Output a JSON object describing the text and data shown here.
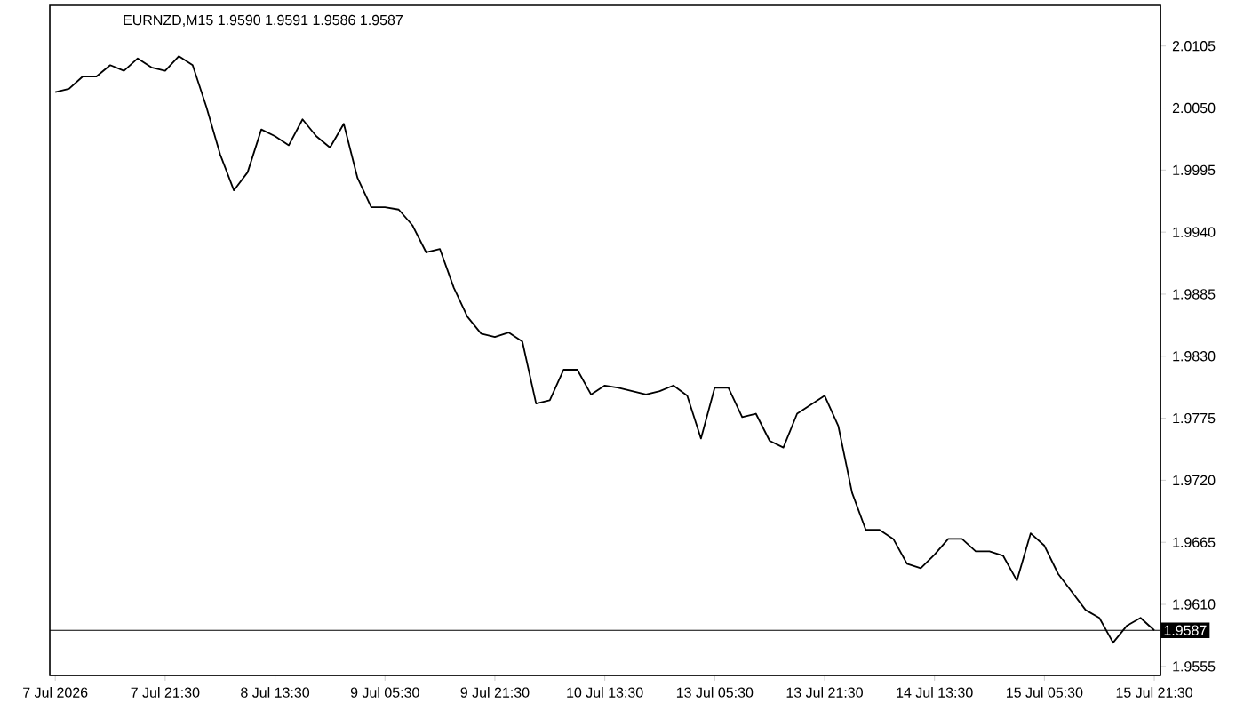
{
  "chart_data": {
    "type": "line",
    "title": "EURNZD,M15  1.9590 1.9591 1.9586 1.9587",
    "categories": [
      "7 Jul 2026",
      null,
      null,
      null,
      null,
      null,
      null,
      null,
      "7 Jul 21:30",
      null,
      null,
      null,
      null,
      null,
      null,
      null,
      "8 Jul 13:30",
      null,
      null,
      null,
      null,
      null,
      null,
      null,
      "9 Jul 05:30",
      null,
      null,
      null,
      null,
      null,
      null,
      null,
      "9 Jul 21:30",
      null,
      null,
      null,
      null,
      null,
      null,
      null,
      "10 Jul 13:30",
      null,
      null,
      null,
      null,
      null,
      null,
      null,
      "13 Jul 05:30",
      null,
      null,
      null,
      null,
      null,
      null,
      null,
      "13 Jul 21:30",
      null,
      null,
      null,
      null,
      null,
      null,
      null,
      "14 Jul 13:30",
      null,
      null,
      null,
      null,
      null,
      null,
      null,
      "15 Jul 05:30",
      null,
      null,
      null,
      null,
      null,
      null,
      null,
      "15 Jul 21:30"
    ],
    "series": [
      {
        "color": "#000000",
        "values": [
          2.0064,
          2.0067,
          2.0078,
          2.0078,
          2.0088,
          2.0083,
          2.0094,
          2.0086,
          2.0083,
          2.0096,
          2.0088,
          2.0051,
          2.0009,
          1.9977,
          1.9993,
          2.0031,
          2.0025,
          2.0017,
          2.004,
          2.0025,
          2.0015,
          2.0036,
          1.9988,
          1.9962,
          1.9962,
          1.996,
          1.9946,
          1.9922,
          1.9925,
          1.9891,
          1.9865,
          1.985,
          1.9847,
          1.9851,
          1.9843,
          1.9788,
          1.9791,
          1.9818,
          1.9818,
          1.9796,
          1.9804,
          1.9802,
          1.9799,
          1.9796,
          1.9799,
          1.9804,
          1.9795,
          1.9757,
          1.9802,
          1.9802,
          1.9776,
          1.9779,
          1.9755,
          1.9749,
          1.9779,
          1.9787,
          1.9795,
          1.9768,
          1.9709,
          1.9676,
          1.9676,
          1.9668,
          1.9646,
          1.9642,
          1.9654,
          1.9668,
          1.9668,
          1.9657,
          1.9657,
          1.9653,
          1.9631,
          1.9673,
          1.9662,
          1.9637,
          1.9621,
          1.9605,
          1.9598,
          1.9576,
          1.9591,
          1.9598,
          1.9587
        ]
      }
    ],
    "ylim": [
      1.9547,
      2.0141
    ],
    "yticks": [
      1.9555,
      {
        "value": 1.961,
        "label": "1.9610"
      },
      1.9665,
      {
        "value": 1.972,
        "label": "1.9720"
      },
      1.9775,
      {
        "value": 1.983,
        "label": "1.9830"
      },
      1.9885,
      {
        "value": 1.994,
        "label": "1.9940"
      },
      1.9995,
      {
        "value": 2.005,
        "label": "2.0050"
      },
      2.0105
    ],
    "ref_lines": [
      {
        "axis": "y",
        "value": 1.9587,
        "label": "1.9587",
        "color": "#000000"
      }
    ]
  }
}
